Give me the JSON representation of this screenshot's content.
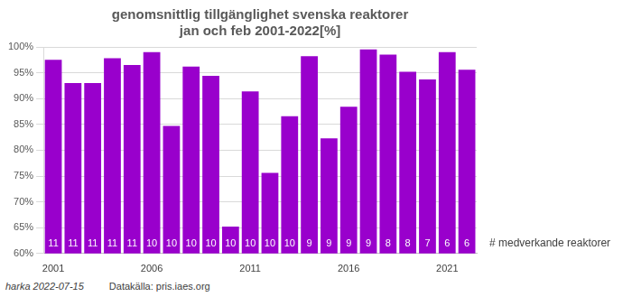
{
  "chart_data": {
    "type": "bar",
    "title": [
      "genomsnittlig tillgänglighet svenska reaktorer",
      "jan och feb 2001-2022[%]"
    ],
    "categories": [
      "2001",
      null,
      null,
      null,
      null,
      "2006",
      null,
      null,
      null,
      null,
      "2011",
      null,
      null,
      null,
      null,
      "2016",
      null,
      null,
      null,
      null,
      "2021",
      null
    ],
    "values": [
      97.5,
      93,
      93,
      97.8,
      96.5,
      99,
      84.7,
      96.2,
      94.4,
      65.2,
      91.4,
      75.6,
      86.6,
      98.2,
      82.3,
      88.4,
      99.5,
      98.5,
      95.2,
      93.7,
      99,
      95.6
    ],
    "reactor_counts": [
      11,
      11,
      11,
      11,
      11,
      10,
      10,
      10,
      10,
      10,
      10,
      10,
      10,
      9,
      9,
      9,
      9,
      8,
      8,
      7,
      6,
      6
    ],
    "reactor_counts_label": "# medverkande reaktorer",
    "color": "#9900cc",
    "ylim": [
      60,
      100
    ],
    "yticks": [
      {
        "value": 60,
        "label": "60%"
      },
      {
        "value": 65,
        "label": "65%"
      },
      {
        "value": 70,
        "label": "70%"
      },
      {
        "value": 75,
        "label": "75%"
      },
      {
        "value": 80,
        "label": "80%"
      },
      {
        "value": 85,
        "label": "85%"
      },
      {
        "value": 90,
        "label": "90%"
      },
      {
        "value": 95,
        "label": "95%"
      },
      {
        "value": 100,
        "label": "100%"
      }
    ],
    "grid": true,
    "note": "harka 2022-07-15",
    "source": "Datakälla: pris.iaes.org"
  }
}
